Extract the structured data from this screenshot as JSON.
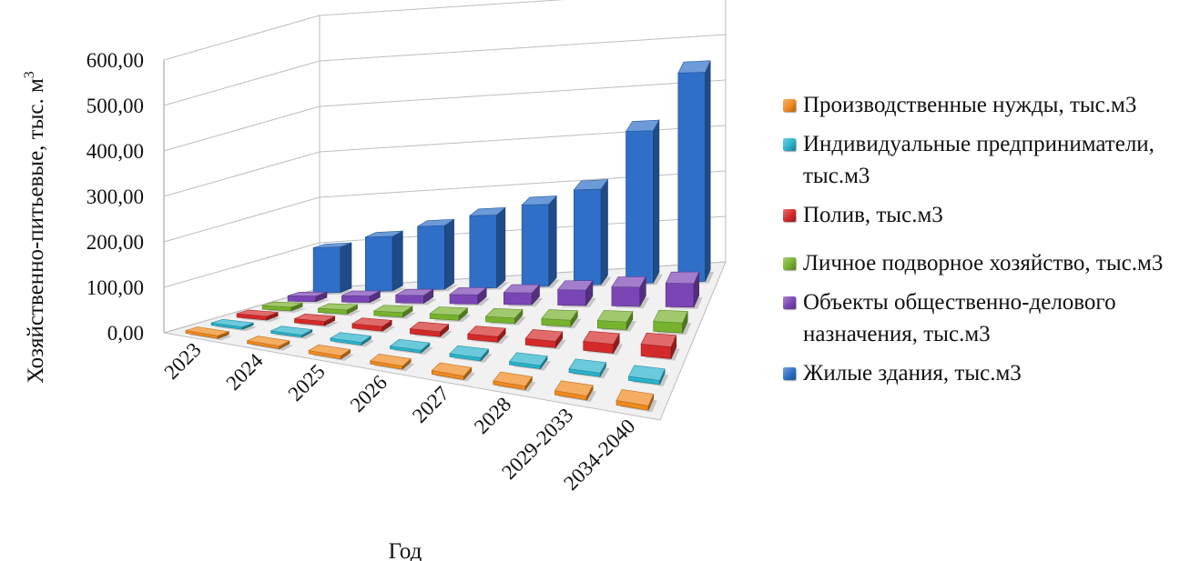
{
  "chart_data": {
    "type": "bar",
    "subtype": "3d-column",
    "title": "",
    "xlabel": "Год",
    "ylabel": "Хозяйственно-питьевые, тыс. м",
    "ylabel_superscript": "3",
    "ylim": [
      0,
      600
    ],
    "y_ticks": [
      "0,00",
      "100,00",
      "200,00",
      "300,00",
      "400,00",
      "500,00",
      "600,00"
    ],
    "grid": true,
    "legend_position": "right",
    "categories": [
      "2023",
      "2024",
      "2025",
      "2026",
      "2027",
      "2028",
      "2029-2033",
      "2034-2040"
    ],
    "series": [
      {
        "name": "Жилые здания, тыс.м3",
        "color": "#2f6fc7",
        "values": [
          100,
          120,
          140,
          160,
          180,
          210,
          335,
          460
        ]
      },
      {
        "name": "Объекты общественно-делового назначения, тыс.м3",
        "color": "#7a46b5",
        "values": [
          12,
          14,
          17,
          20,
          26,
          34,
          42,
          52
        ]
      },
      {
        "name": "Личное подворное хозяйство, тыс.м3",
        "color": "#77b22f",
        "values": [
          8,
          9,
          10,
          11,
          12,
          14,
          17,
          22
        ]
      },
      {
        "name": "Полив, тыс.м3",
        "color": "#d42a2a",
        "values": [
          8,
          9,
          10,
          11,
          12,
          14,
          20,
          26
        ]
      },
      {
        "name": "Индивидуальные предприниматели, тыс.м3",
        "color": "#2ab3cc",
        "values": [
          5,
          5,
          6,
          6,
          7,
          7,
          8,
          9
        ]
      },
      {
        "name": "Производственные нужды, тыс.м3",
        "color": "#f08a1f",
        "values": [
          6,
          6,
          7,
          7,
          8,
          8,
          9,
          10
        ]
      }
    ]
  },
  "legend_order": [
    5,
    4,
    3,
    2,
    1,
    0
  ]
}
